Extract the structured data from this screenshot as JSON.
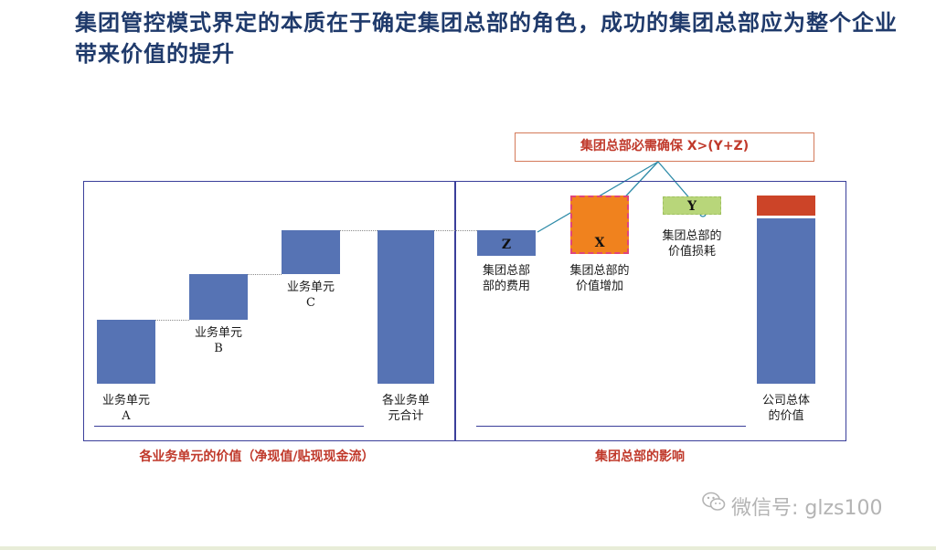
{
  "title": "集团管控模式界定的本质在于确定集团总部的角色，成功的集团总部应为整个企业带来价值的提升",
  "constraint": "集团总部必需确保 X>(Y+Z)",
  "left_panel": {
    "caption": "各业务单元的价值（净现值/贴现现金流）",
    "unit_a": "业务单元\nA",
    "unit_b": "业务单元\nB",
    "unit_c": "业务单元\nC",
    "total": "各业务单\n元合计"
  },
  "right_panel": {
    "caption": "集团总部的影响",
    "z_letter": "Z",
    "z_label": "集团总部\n部的费用",
    "x_letter": "X",
    "x_label": "集团总部的\n价值增加",
    "y_letter": "Y",
    "y_label": "集团总部的\n价值损耗",
    "company": "公司总体\n的价值"
  },
  "colors": {
    "bar": "#5673b4",
    "x_box": "#f0821e",
    "x_border": "#e0457a",
    "y_box": "#b8d67a",
    "company_top": "#cc4428",
    "caption": "#c0392b",
    "frame": "#3a3f9a"
  },
  "watermark": "微信号: glzs100",
  "watermark_icon": "wechat-icon"
}
